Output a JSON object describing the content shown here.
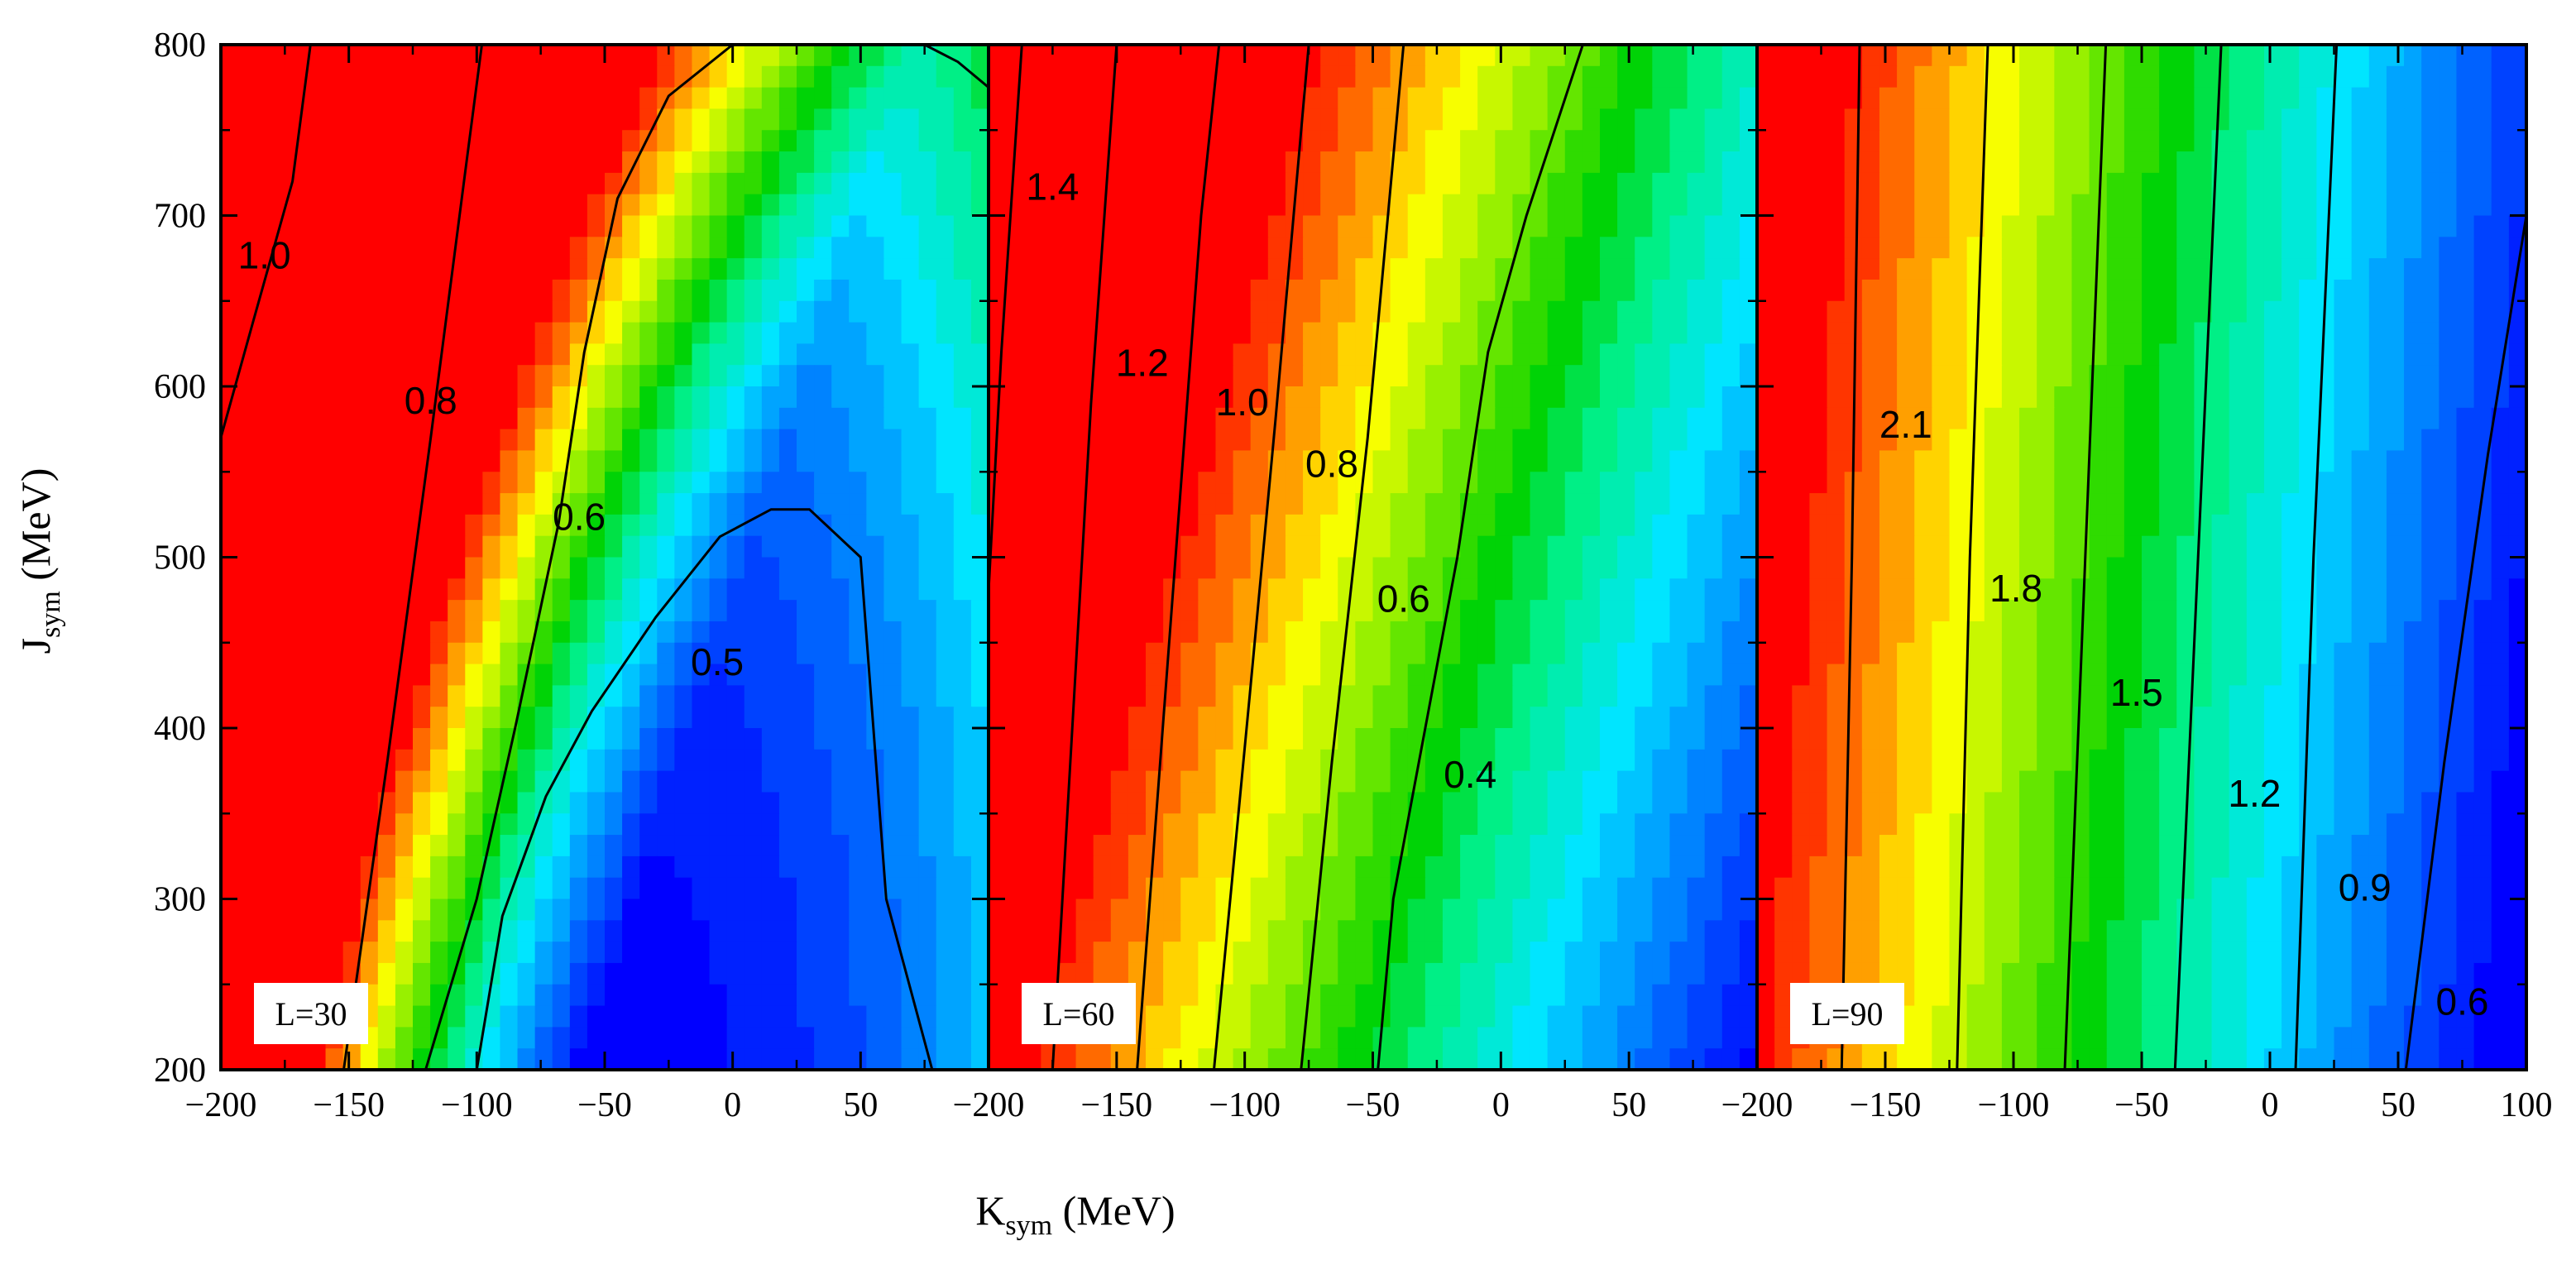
{
  "chart_data": {
    "type": "heatmap",
    "description_of_axes": "shared",
    "xlabel": "K",
    "xlabel_sub": "sym",
    "xlabel_unit": " (MeV)",
    "ylabel": "J",
    "ylabel_sub": "sym",
    "ylabel_unit": " (MeV)",
    "xlim": [
      -200,
      100
    ],
    "ylim": [
      200,
      800
    ],
    "y_ticks": [
      200,
      300,
      400,
      500,
      600,
      700,
      800
    ],
    "y_tick_labels": [
      "200",
      "300",
      "400",
      "500",
      "600",
      "700",
      "800"
    ],
    "x_ticks": [
      -200,
      -150,
      -100,
      -50,
      0,
      50
    ],
    "x_tick_labels": [
      "−200",
      "−150",
      "−100",
      "−50",
      "0",
      "50"
    ],
    "x_ticks_last": [
      -200,
      -150,
      -100,
      -50,
      0,
      50,
      100
    ],
    "x_tick_labels_last": [
      "−200",
      "−150",
      "−100",
      "−50",
      "0",
      "50",
      "100"
    ],
    "panels": [
      {
        "label": "L=30",
        "colorRange": [
          0.42,
          1.15
        ],
        "field": {
          "kind": "dome",
          "a": 1.15,
          "b": 0.0009,
          "c": 0.00042,
          "d": 0.0022,
          "peakK": -40,
          "peakJ": 140,
          "sxK": 95,
          "syJ": 380
        },
        "contours": [
          {
            "level": 1.0,
            "label": "1.0",
            "points": [
              [
                -200,
                570
              ],
              [
                -187,
                640
              ],
              [
                -172,
                720
              ],
              [
                -165,
                800
              ]
            ],
            "labelAt": [
              -183,
              675
            ]
          },
          {
            "level": 0.8,
            "label": "0.8",
            "points": [
              [
                -152,
                200
              ],
              [
                -135,
                380
              ],
              [
                -118,
                570
              ],
              [
                -105,
                720
              ],
              [
                -98,
                800
              ]
            ],
            "labelAt": [
              -118,
              590
            ]
          },
          {
            "level": 0.6,
            "label": "0.6",
            "points": [
              [
                -120,
                200
              ],
              [
                -100,
                300
              ],
              [
                -85,
                400
              ],
              [
                -68,
                520
              ],
              [
                -58,
                620
              ],
              [
                -45,
                710
              ],
              [
                -25,
                770
              ],
              [
                0,
                800
              ]
            ],
            "labelAt": [
              -60,
              522
            ]
          },
          {
            "level": 0.6,
            "label": "",
            "points": [
              [
                75,
                800
              ],
              [
                88,
                790
              ],
              [
                100,
                775
              ]
            ],
            "labelAt": null
          },
          {
            "level": 0.5,
            "label": "0.5",
            "points": [
              [
                -100,
                200
              ],
              [
                -90,
                290
              ],
              [
                -73,
                360
              ],
              [
                -55,
                410
              ],
              [
                -30,
                465
              ],
              [
                -5,
                512
              ],
              [
                15,
                528
              ],
              [
                30,
                528
              ],
              [
                50,
                500
              ],
              [
                55,
                400
              ],
              [
                60,
                300
              ],
              [
                78,
                200
              ]
            ],
            "labelAt": [
              -6,
              437
            ]
          }
        ]
      },
      {
        "label": "L=60",
        "colorRange": [
          0.28,
          1.55
        ],
        "field": {
          "kind": "linear",
          "a": 0.72,
          "b": -0.0044,
          "c": 0.00028,
          "slopeK": 0.19
        },
        "contours": [
          {
            "level": 1.4,
            "label": "1.4",
            "points": [
              [
                -200,
                480
              ],
              [
                -195,
                620
              ],
              [
                -187,
                800
              ]
            ],
            "labelAt": [
              -175,
              715
            ]
          },
          {
            "level": 1.2,
            "label": "1.2",
            "points": [
              [
                -175,
                200
              ],
              [
                -165,
                460
              ],
              [
                -160,
                590
              ],
              [
                -150,
                800
              ]
            ],
            "labelAt": [
              -140,
              612
            ]
          },
          {
            "level": 1.0,
            "label": "1.0",
            "points": [
              [
                -142,
                200
              ],
              [
                -130,
                440
              ],
              [
                -117,
                700
              ],
              [
                -110,
                800
              ]
            ],
            "labelAt": [
              -101,
              589
            ]
          },
          {
            "level": 0.8,
            "label": "0.8",
            "points": [
              [
                -112,
                200
              ],
              [
                -98,
                420
              ],
              [
                -88,
                580
              ],
              [
                -75,
                800
              ]
            ],
            "labelAt": [
              -66,
              553
            ]
          },
          {
            "level": 0.6,
            "label": "0.6",
            "points": [
              [
                -78,
                200
              ],
              [
                -66,
                380
              ],
              [
                -52,
                570
              ],
              [
                -38,
                800
              ]
            ],
            "labelAt": [
              -38,
              474
            ]
          },
          {
            "level": 0.4,
            "label": "0.4",
            "points": [
              [
                -48,
                200
              ],
              [
                -42,
                300
              ],
              [
                -32,
                380
              ],
              [
                -17,
                500
              ],
              [
                -5,
                620
              ],
              [
                10,
                700
              ],
              [
                32,
                800
              ]
            ],
            "labelAt": [
              -12,
              371
            ]
          }
        ]
      },
      {
        "label": "L=90",
        "colorRange": [
          0.5,
          2.35
        ],
        "field": {
          "kind": "linear",
          "a": 1.05,
          "b": -0.0064,
          "c": 0.00016,
          "slopeK": 0.06
        },
        "contours": [
          {
            "level": 2.1,
            "label": "2.1",
            "points": [
              [
                -167,
                200
              ],
              [
                -163,
                500
              ],
              [
                -160,
                800
              ]
            ],
            "labelAt": [
              -142,
              576
            ]
          },
          {
            "level": 1.8,
            "label": "1.8",
            "points": [
              [
                -122,
                200
              ],
              [
                -117,
                500
              ],
              [
                -110,
                800
              ]
            ],
            "labelAt": [
              -99,
              480
            ]
          },
          {
            "level": 1.5,
            "label": "1.5",
            "points": [
              [
                -80,
                200
              ],
              [
                -72,
                500
              ],
              [
                -64,
                800
              ]
            ],
            "labelAt": [
              -52,
              419
            ]
          },
          {
            "level": 1.2,
            "label": "1.2",
            "points": [
              [
                -37,
                200
              ],
              [
                -28,
                500
              ],
              [
                -19,
                800
              ]
            ],
            "labelAt": [
              -6,
              360
            ]
          },
          {
            "level": 0.9,
            "label": "0.9",
            "points": [
              [
                10,
                200
              ],
              [
                17,
                500
              ],
              [
                26,
                800
              ]
            ],
            "labelAt": [
              37,
              305
            ]
          },
          {
            "level": 0.6,
            "label": "0.6",
            "points": [
              [
                53,
                200
              ],
              [
                68,
                380
              ],
              [
                85,
                560
              ],
              [
                100,
                700
              ]
            ],
            "labelAt": [
              75,
              238
            ]
          }
        ]
      }
    ]
  }
}
